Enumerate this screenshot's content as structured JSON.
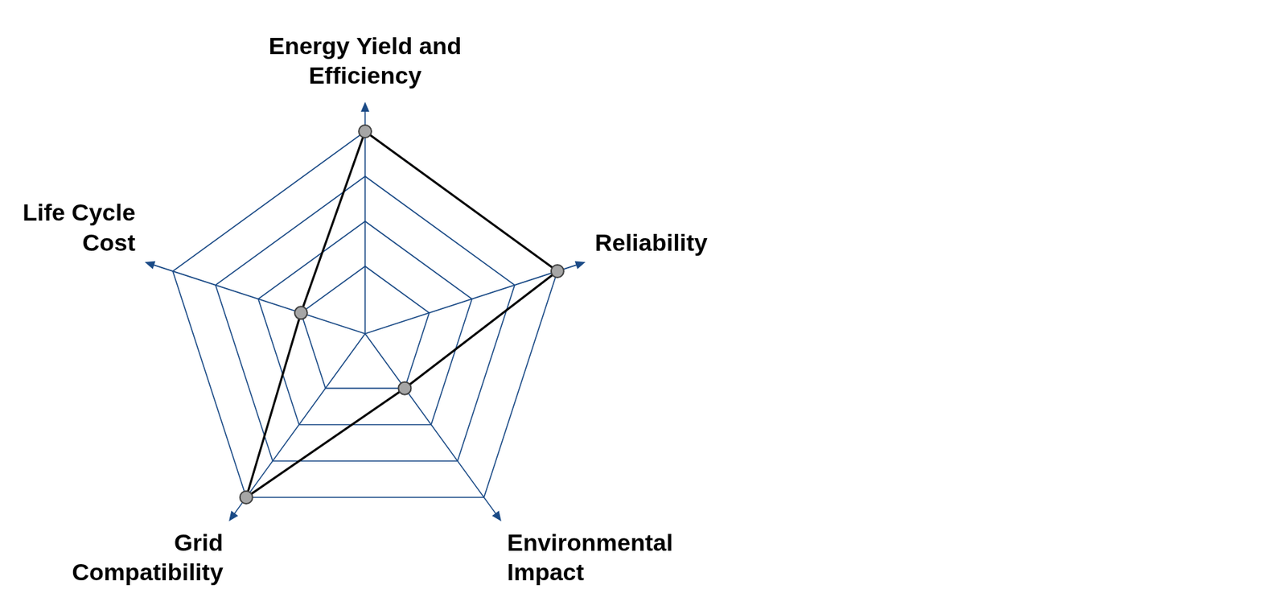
{
  "chart_data": {
    "type": "radar",
    "categories": [
      "Energy Yield and Efficiency",
      "Reliability",
      "Environmental Impact",
      "Grid Compatibility",
      "Life Cycle Cost"
    ],
    "values": [
      4,
      4,
      1,
      4,
      1
    ],
    "color": "#000000",
    "marker": "circle",
    "ylim": [
      -0.5,
      4
    ],
    "yticks": [
      1,
      2,
      3,
      4
    ],
    "grid": true,
    "tick_labels": false
  }
}
